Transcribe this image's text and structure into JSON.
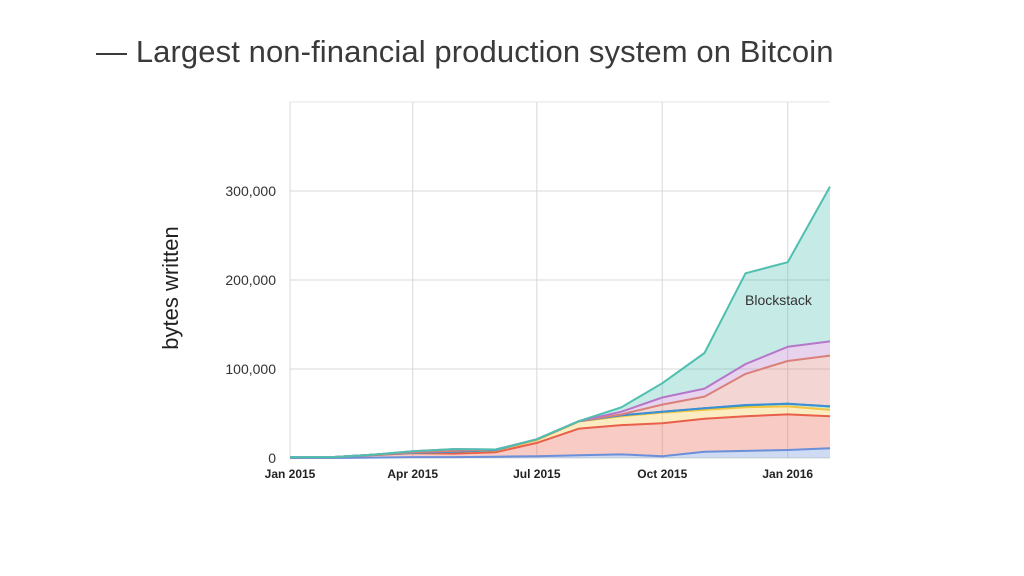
{
  "slide": {
    "title": "— Largest non-financial production system on Bitcoin"
  },
  "chart_data": {
    "type": "area",
    "stacked": true,
    "title": "",
    "ylabel": "bytes written",
    "xlabel": "",
    "ylim": [
      0,
      400000
    ],
    "y_ticks": [
      0,
      100000,
      200000,
      300000
    ],
    "y_tick_labels": [
      "0",
      "100,000",
      "200,000",
      "300,000"
    ],
    "x_tick_labels": [
      "Jan 2015",
      "Apr 2015",
      "Jul 2015",
      "Oct 2015",
      "Jan 2016"
    ],
    "x": [
      "2015-01-01",
      "2015-02-01",
      "2015-03-01",
      "2015-04-01",
      "2015-05-01",
      "2015-06-01",
      "2015-07-01",
      "2015-08-01",
      "2015-09-01",
      "2015-10-01",
      "2015-11-01",
      "2015-12-01",
      "2016-01-01",
      "2016-02-01"
    ],
    "grid": true,
    "annotations": [
      {
        "text": "Blockstack",
        "x": "2015-12-15",
        "y": 178000
      }
    ],
    "series": [
      {
        "color": "#6b8fd8",
        "values": [
          0,
          0,
          500,
          1000,
          1000,
          1500,
          2000,
          3000,
          4000,
          2000,
          7000,
          8000,
          9000,
          11000
        ]
      },
      {
        "color": "#e8604a",
        "values": [
          1000,
          1000,
          2500,
          4500,
          4000,
          5000,
          15000,
          30000,
          33000,
          37000,
          37000,
          39000,
          40000,
          36000
        ]
      },
      {
        "color": "#f5c542",
        "values": [
          0,
          0,
          500,
          500,
          2000,
          2000,
          3000,
          8000,
          10000,
          12000,
          10000,
          10000,
          9000,
          7000
        ]
      },
      {
        "color": "#4fae68",
        "values": [
          0,
          0,
          0,
          0,
          0,
          500,
          1000,
          500,
          1000,
          1000,
          2000,
          2000,
          3000,
          4000
        ]
      },
      {
        "color": "#3a8fd8",
        "values": [
          0,
          0,
          0,
          0,
          0,
          0,
          0,
          0,
          0,
          0,
          0,
          500,
          0,
          0
        ]
      },
      {
        "color": "#d9807a",
        "values": [
          0,
          0,
          0,
          500,
          1000,
          500,
          0,
          0,
          1000,
          8000,
          13000,
          35000,
          48000,
          57000
        ]
      },
      {
        "color": "#b577c9",
        "values": [
          0,
          0,
          0,
          1000,
          2000,
          0,
          0,
          0,
          3000,
          8000,
          9000,
          11000,
          16000,
          16000
        ]
      },
      {
        "color": "#4fbfb0",
        "values": [
          0,
          0,
          0,
          0,
          0,
          0,
          0,
          0,
          5000,
          16000,
          40000,
          102000,
          95000,
          174000
        ]
      }
    ]
  }
}
